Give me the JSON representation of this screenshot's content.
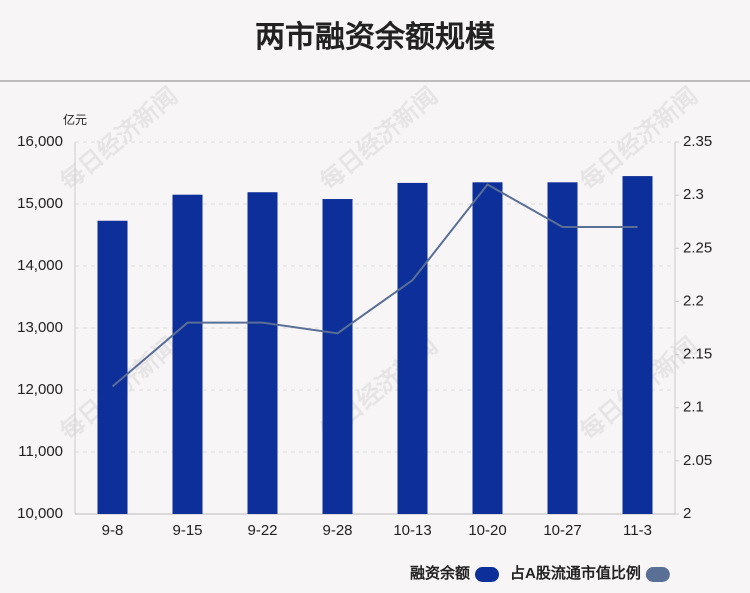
{
  "chart_data": {
    "type": "bar-line",
    "title": "两市融资余额规模",
    "y_unit": "亿元",
    "watermark": "每日经济新闻",
    "categories": [
      "9-8",
      "9-15",
      "9-22",
      "9-28",
      "10-13",
      "10-20",
      "10-27",
      "11-3"
    ],
    "series": [
      {
        "name": "融资余额",
        "type": "bar",
        "color": "#0d2f9a",
        "values": [
          14730,
          15150,
          15190,
          15080,
          15340,
          15350,
          15350,
          15450
        ]
      },
      {
        "name": "占A股流通市值比例",
        "type": "line",
        "axis": "y2",
        "color": "#5a6f96",
        "values": [
          2.12,
          2.18,
          2.18,
          2.17,
          2.22,
          2.31,
          2.27,
          2.27
        ]
      }
    ],
    "ylim": [
      10000,
      16000
    ],
    "yticks": [
      {
        "value": 10000,
        "label": "10,000"
      },
      {
        "value": 11000,
        "label": "11,000"
      },
      {
        "value": 12000,
        "label": "12,000"
      },
      {
        "value": 13000,
        "label": "13,000"
      },
      {
        "value": 14000,
        "label": "14,000"
      },
      {
        "value": 15000,
        "label": "15,000"
      },
      {
        "value": 16000,
        "label": "16,000"
      }
    ],
    "y2lim": [
      2,
      2.35
    ],
    "y2ticks": [
      2,
      2.05,
      2.1,
      2.15,
      2.2,
      2.25,
      2.3,
      2.35
    ],
    "grid": true,
    "legend": "bottom-right"
  }
}
